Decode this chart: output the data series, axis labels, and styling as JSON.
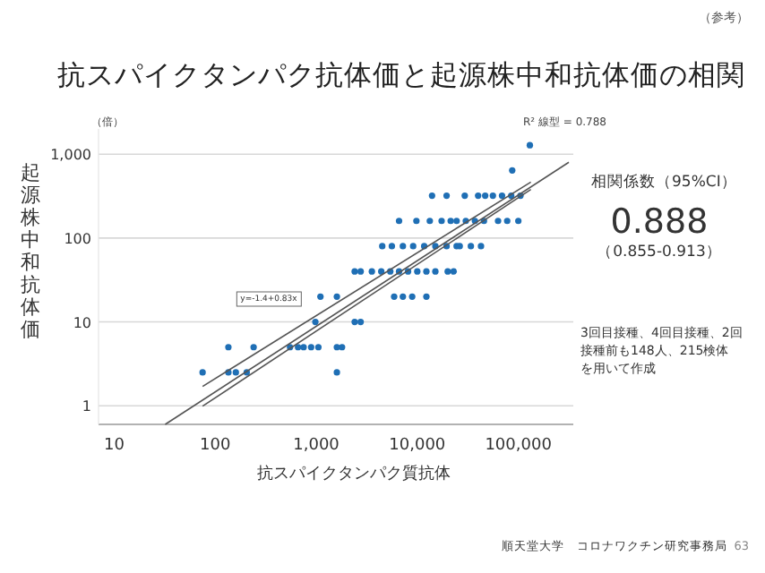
{
  "chart_data": {
    "type": "scatter",
    "title": "抗スパイクタンパク抗体価と起源株中和抗体価の相関",
    "xlabel": "抗スパイクタンパク質抗体",
    "ylabel": "起源株中和抗体価",
    "log": "xy",
    "grid": "y",
    "xlim": [
      7,
      350000
    ],
    "ylim": [
      0.6,
      2000
    ],
    "xticks": [
      {
        "value": 10,
        "label": "10"
      },
      {
        "value": 100,
        "label": "100"
      },
      {
        "value": 1000,
        "label": "1,000"
      },
      {
        "value": 10000,
        "label": "10,000"
      },
      {
        "value": 100000,
        "label": "100,000"
      }
    ],
    "yticks": [
      {
        "value": 1,
        "label": "1"
      },
      {
        "value": 10,
        "label": "10"
      },
      {
        "value": 100,
        "label": "100"
      },
      {
        "value": 1000,
        "label": "1,000"
      }
    ],
    "annotations": [
      "（参考）",
      "（倍）",
      "R² 線型 = 0.788",
      "y=-1.4+0.83x",
      "相関係数（95%CI）",
      "0.888",
      "（0.855-0.913）",
      "3回目接種、4回目接種、2回接種前も148人、215検体を用いて作成",
      "順天堂大学　コロナワクチン研究事務局",
      "63"
    ],
    "series": [
      {
        "type": "scatter",
        "marker": "circle",
        "color": "#1f6fb5",
        "x": [
          130000,
          87000,
          14000,
          19500,
          29500,
          40000,
          47000,
          56000,
          69000,
          85000,
          105000,
          6600,
          9800,
          13300,
          17400,
          21400,
          24500,
          30200,
          37200,
          45700,
          63000,
          77600,
          100000,
          4500,
          5600,
          7200,
          9100,
          11700,
          15100,
          19500,
          24500,
          26300,
          33900,
          42700,
          2400,
          2750,
          3550,
          4400,
          5400,
          6600,
          8100,
          10000,
          12300,
          15100,
          20000,
          22900,
          1100,
          1600,
          5900,
          7200,
          8900,
          12300,
          980,
          2400,
          2750,
          135,
          240,
          550,
          660,
          750,
          890,
          1050,
          1600,
          1800,
          75,
          135,
          160,
          205,
          1600
        ],
        "values": [
          1280,
          640,
          320,
          320,
          320,
          320,
          320,
          320,
          320,
          320,
          320,
          160,
          160,
          160,
          160,
          160,
          160,
          160,
          160,
          160,
          160,
          160,
          160,
          80,
          80,
          80,
          80,
          80,
          80,
          80,
          80,
          80,
          80,
          80,
          40,
          40,
          40,
          40,
          40,
          40,
          40,
          40,
          40,
          40,
          40,
          40,
          20,
          20,
          20,
          20,
          20,
          20,
          10,
          10,
          10,
          5,
          5,
          5,
          5,
          5,
          5,
          5,
          5,
          5,
          2.5,
          2.5,
          2.5,
          2.5,
          2.5
        ]
      },
      {
        "type": "line",
        "marker": "none",
        "line_style": "solid",
        "color": "#555555",
        "x": [
          32,
          316000
        ],
        "values": [
          0.6,
          800
        ]
      },
      {
        "type": "line",
        "marker": "none",
        "line_style": "solid",
        "color": "#555555",
        "x": [
          75,
          133000
        ],
        "values": [
          1.7,
          465
        ]
      },
      {
        "type": "line",
        "marker": "none",
        "line_style": "solid",
        "color": "#555555",
        "x": [
          75,
          133000
        ],
        "values": [
          0.99,
          380
        ]
      }
    ]
  }
}
